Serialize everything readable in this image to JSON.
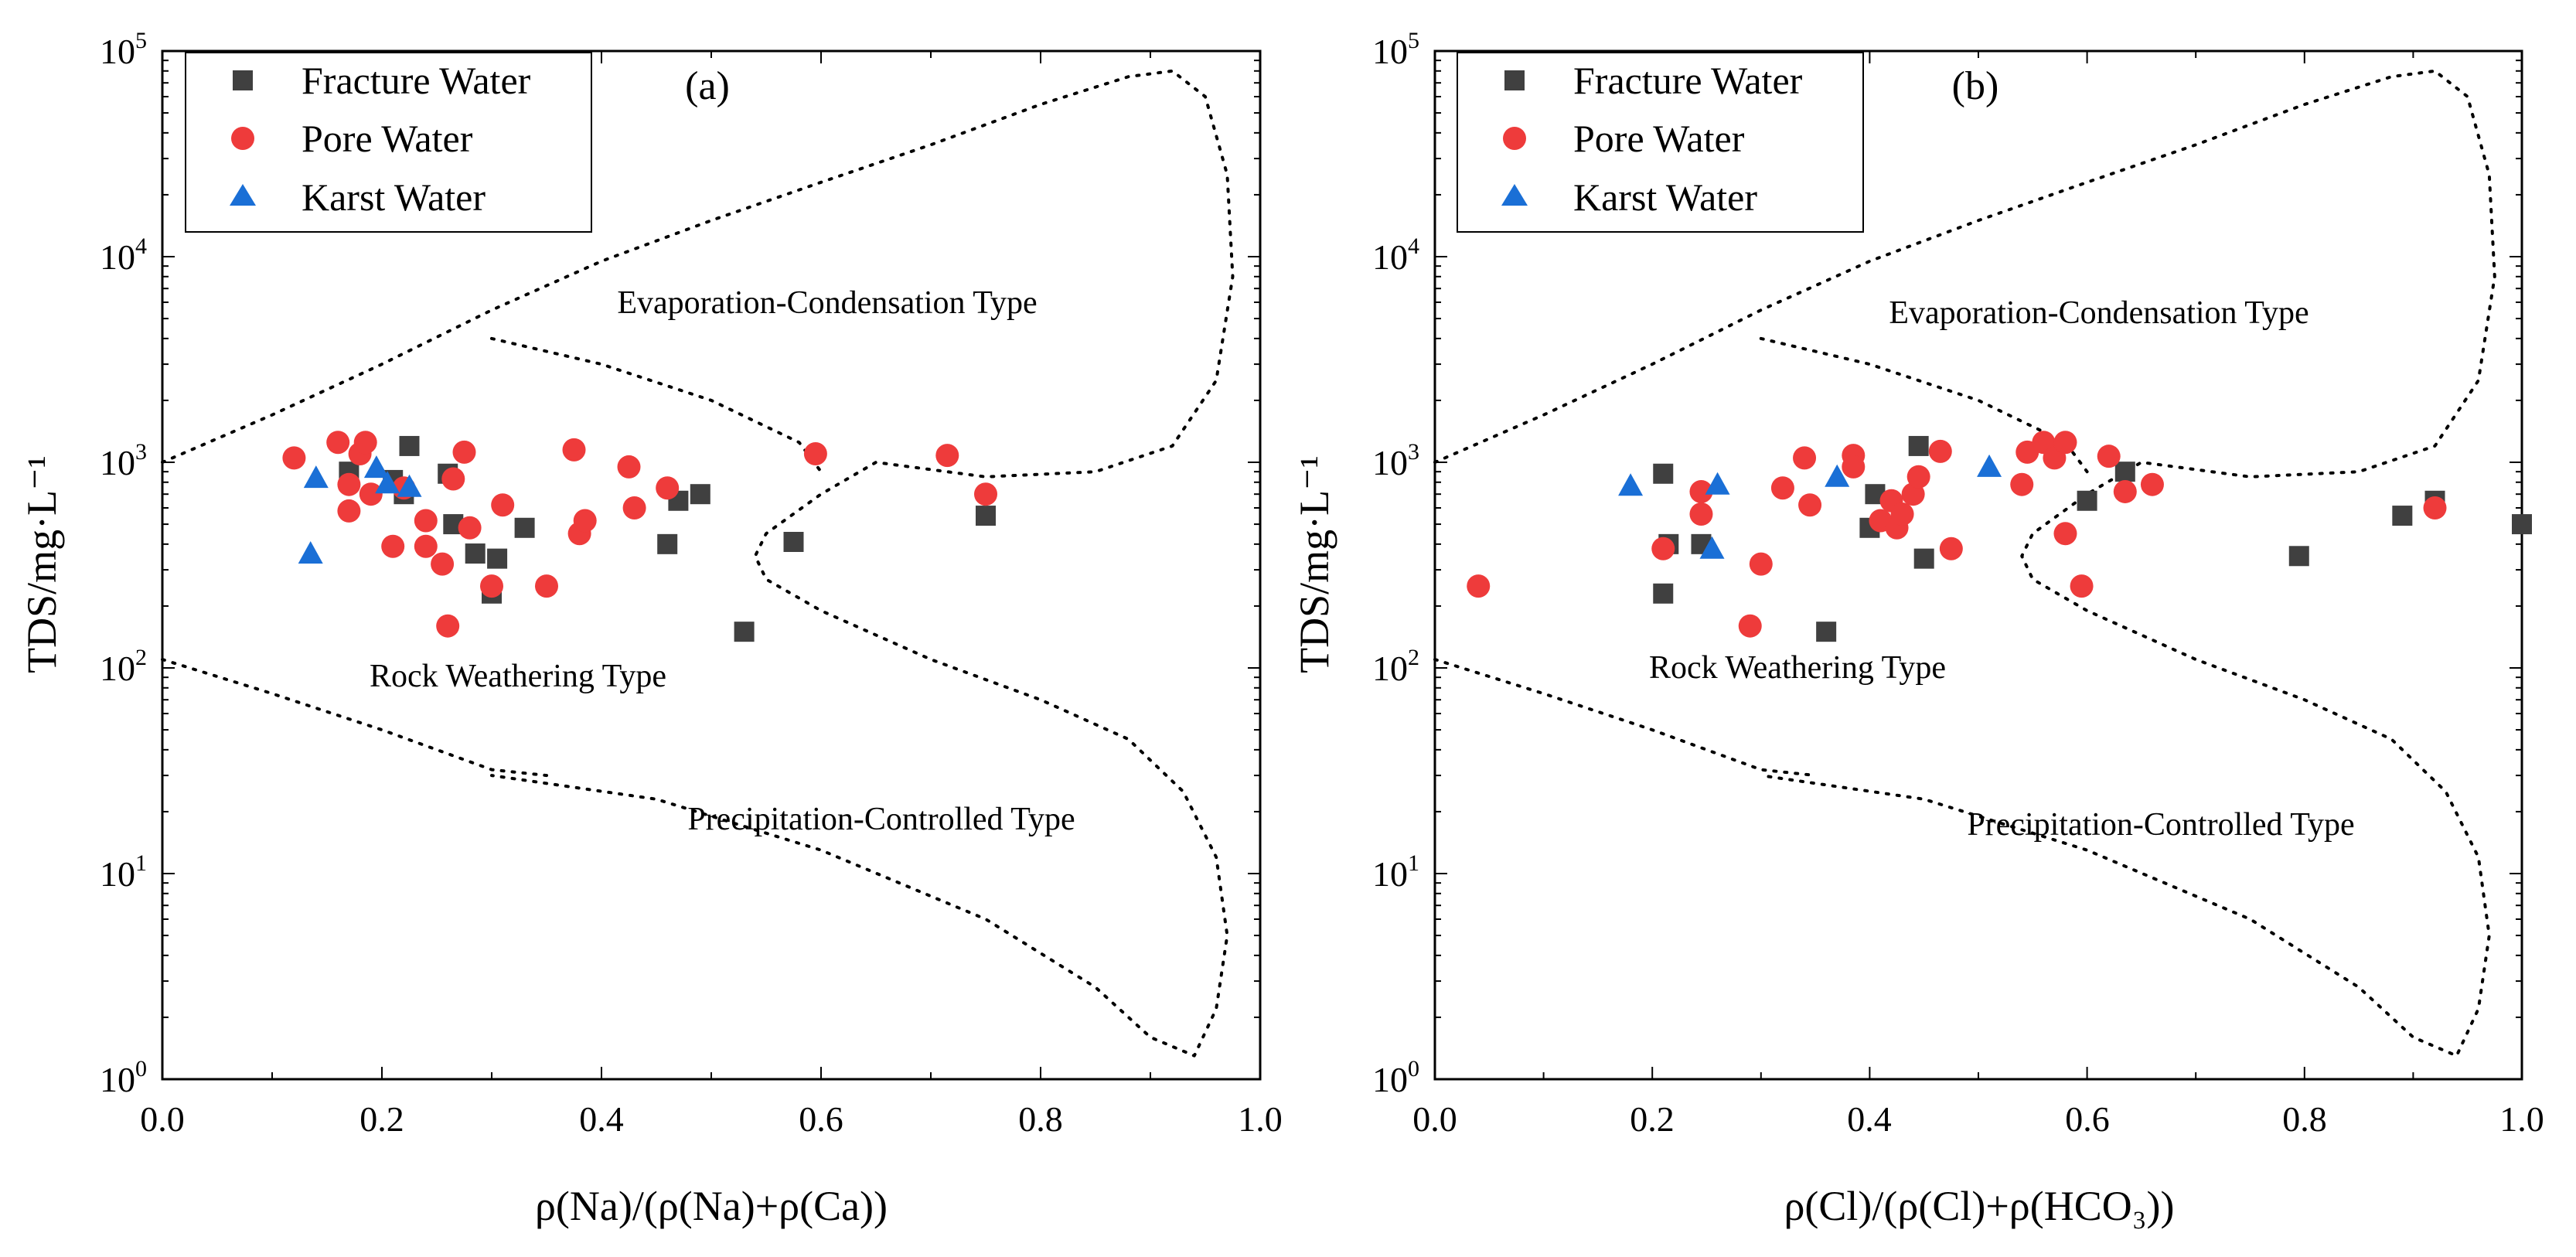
{
  "figure": {
    "legend": {
      "fracture": "Fracture Water",
      "pore": "Pore Water",
      "karst": "Karst Water"
    },
    "colors": {
      "fracture": "#404040",
      "pore": "#ee3b3b",
      "karst": "#1a6fd6",
      "boundary": "#000000"
    }
  },
  "chart_data": [
    {
      "type": "scatter",
      "panel_label": "(a)",
      "xlabel": "ρ(Na)/(ρ(Na)+ρ(Ca))",
      "ylabel": "TDS/mg·L⁻¹",
      "yscale": "log",
      "xlim": [
        0.0,
        1.0
      ],
      "ylim": [
        1,
        100000
      ],
      "x_ticks": [
        "0.0",
        "0.2",
        "0.4",
        "0.6",
        "0.8",
        "1.0"
      ],
      "y_ticks": [
        {
          "base": "10",
          "exp": "0"
        },
        {
          "base": "10",
          "exp": "1"
        },
        {
          "base": "10",
          "exp": "2"
        },
        {
          "base": "10",
          "exp": "3"
        },
        {
          "base": "10",
          "exp": "4"
        },
        {
          "base": "10",
          "exp": "5"
        }
      ],
      "annotations": {
        "evaporation": "Evaporation-Condensation Type",
        "rock": "Rock Weathering Type",
        "precipitation": "Precipitation-Controlled Type"
      },
      "series": [
        {
          "name": "Fracture Water",
          "marker": "square",
          "points": [
            [
              0.17,
              900
            ],
            [
              0.21,
              820
            ],
            [
              0.22,
              700
            ],
            [
              0.225,
              1200
            ],
            [
              0.26,
              880
            ],
            [
              0.265,
              500
            ],
            [
              0.285,
              360
            ],
            [
              0.3,
              230
            ],
            [
              0.305,
              340
            ],
            [
              0.33,
              480
            ],
            [
              0.46,
              400
            ],
            [
              0.47,
              650
            ],
            [
              0.49,
              700
            ],
            [
              0.53,
              150
            ],
            [
              0.575,
              410
            ],
            [
              0.75,
              550
            ]
          ]
        },
        {
          "name": "Pore Water",
          "marker": "circle",
          "points": [
            [
              0.12,
              1050
            ],
            [
              0.16,
              1250
            ],
            [
              0.17,
              580
            ],
            [
              0.17,
              780
            ],
            [
              0.18,
              1100
            ],
            [
              0.185,
              1250
            ],
            [
              0.19,
              700
            ],
            [
              0.21,
              390
            ],
            [
              0.22,
              750
            ],
            [
              0.24,
              520
            ],
            [
              0.24,
              390
            ],
            [
              0.255,
              320
            ],
            [
              0.26,
              160
            ],
            [
              0.265,
              830
            ],
            [
              0.275,
              1120
            ],
            [
              0.28,
              480
            ],
            [
              0.3,
              250
            ],
            [
              0.31,
              620
            ],
            [
              0.35,
              250
            ],
            [
              0.375,
              1150
            ],
            [
              0.38,
              450
            ],
            [
              0.385,
              520
            ],
            [
              0.425,
              950
            ],
            [
              0.43,
              600
            ],
            [
              0.46,
              750
            ],
            [
              0.595,
              1100
            ],
            [
              0.715,
              1080
            ],
            [
              0.75,
              700
            ]
          ]
        },
        {
          "name": "Karst Water",
          "marker": "triangle",
          "points": [
            [
              0.135,
              360
            ],
            [
              0.14,
              840
            ],
            [
              0.195,
              940
            ],
            [
              0.205,
              790
            ],
            [
              0.225,
              760
            ]
          ]
        }
      ]
    },
    {
      "type": "scatter",
      "panel_label": "(b)",
      "xlabel": "ρ(Cl)/(ρ(Cl)+ρ(HCO₃))",
      "ylabel": "TDS/mg·L⁻¹",
      "yscale": "log",
      "xlim": [
        0.0,
        1.0
      ],
      "ylim": [
        1,
        100000
      ],
      "x_ticks": [
        "0.0",
        "0.2",
        "0.4",
        "0.6",
        "0.8",
        "1.0"
      ],
      "y_ticks": [
        {
          "base": "10",
          "exp": "0"
        },
        {
          "base": "10",
          "exp": "1"
        },
        {
          "base": "10",
          "exp": "2"
        },
        {
          "base": "10",
          "exp": "3"
        },
        {
          "base": "10",
          "exp": "4"
        },
        {
          "base": "10",
          "exp": "5"
        }
      ],
      "annotations": {
        "evaporation": "Evaporation-Condensation Type",
        "rock": "Rock Weathering Type",
        "precipitation": "Precipitation-Controlled Type"
      },
      "series": [
        {
          "name": "Fracture Water",
          "marker": "square",
          "points": [
            [
              0.21,
              880
            ],
            [
              0.21,
              230
            ],
            [
              0.215,
              400
            ],
            [
              0.245,
              400
            ],
            [
              0.36,
              150
            ],
            [
              0.4,
              480
            ],
            [
              0.405,
              700
            ],
            [
              0.445,
              1200
            ],
            [
              0.45,
              340
            ],
            [
              0.6,
              650
            ],
            [
              0.635,
              900
            ],
            [
              0.795,
              350
            ],
            [
              0.89,
              550
            ],
            [
              0.92,
              650
            ],
            [
              1.0,
              500
            ]
          ]
        },
        {
          "name": "Pore Water",
          "marker": "circle",
          "points": [
            [
              0.04,
              250
            ],
            [
              0.21,
              380
            ],
            [
              0.245,
              720
            ],
            [
              0.245,
              560
            ],
            [
              0.29,
              160
            ],
            [
              0.3,
              320
            ],
            [
              0.32,
              750
            ],
            [
              0.34,
              1050
            ],
            [
              0.345,
              620
            ],
            [
              0.385,
              1080
            ],
            [
              0.385,
              950
            ],
            [
              0.41,
              520
            ],
            [
              0.42,
              650
            ],
            [
              0.425,
              480
            ],
            [
              0.43,
              560
            ],
            [
              0.44,
              700
            ],
            [
              0.445,
              850
            ],
            [
              0.465,
              1130
            ],
            [
              0.475,
              380
            ],
            [
              0.54,
              780
            ],
            [
              0.545,
              1120
            ],
            [
              0.56,
              1250
            ],
            [
              0.57,
              1050
            ],
            [
              0.58,
              1250
            ],
            [
              0.58,
              450
            ],
            [
              0.595,
              250
            ],
            [
              0.62,
              1070
            ],
            [
              0.635,
              720
            ],
            [
              0.66,
              780
            ],
            [
              0.92,
              600
            ]
          ]
        },
        {
          "name": "Karst Water",
          "marker": "triangle",
          "points": [
            [
              0.18,
              770
            ],
            [
              0.255,
              380
            ],
            [
              0.26,
              780
            ],
            [
              0.37,
              850
            ],
            [
              0.51,
              950
            ]
          ]
        }
      ]
    }
  ]
}
